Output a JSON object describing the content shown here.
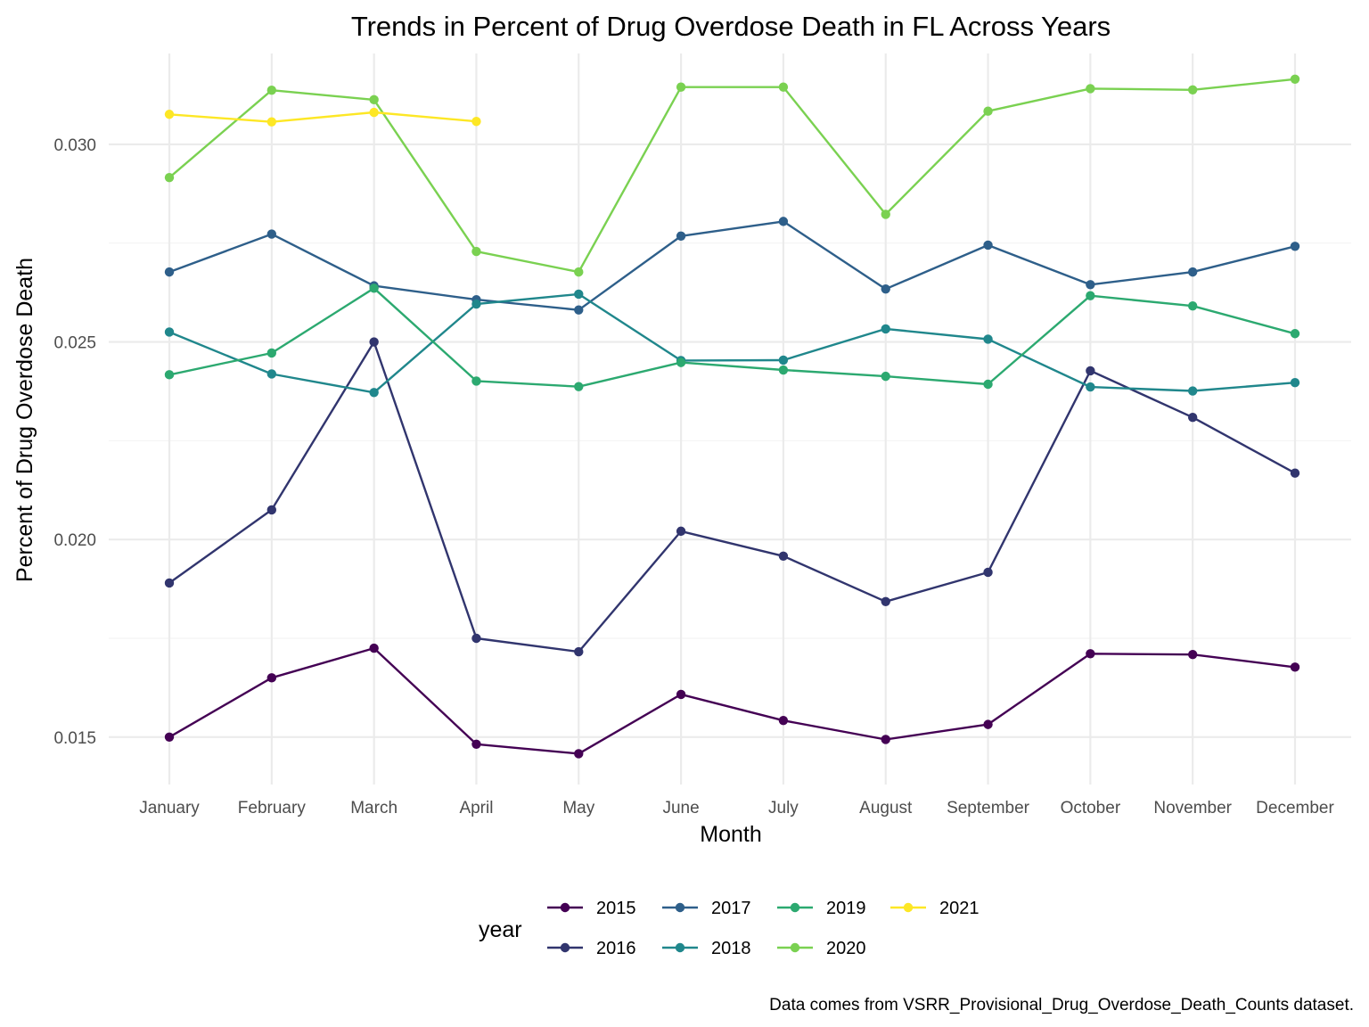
{
  "chart_data": {
    "type": "line",
    "title": "Trends in Percent of Drug Overdose Death in FL Across Years",
    "xlabel": "Month",
    "ylabel": "Percent of Drug Overdose Death",
    "caption": "Data comes from VSRR_Provisional_Drug_Overdose_Death_Counts dataset.",
    "legend_title": "year",
    "legend_position": "bottom",
    "grid": true,
    "ylim": [
      0.0138,
      0.0323
    ],
    "yticks": [
      0.015,
      0.02,
      0.025,
      0.03
    ],
    "ytick_labels": [
      "0.015",
      "0.020",
      "0.025",
      "0.030"
    ],
    "categories": [
      "January",
      "February",
      "March",
      "April",
      "May",
      "June",
      "July",
      "August",
      "September",
      "October",
      "November",
      "December"
    ],
    "series": [
      {
        "name": "2015",
        "color": "#440154",
        "values": [
          0.015,
          0.0165,
          0.01725,
          0.01482,
          0.01458,
          0.01608,
          0.01542,
          0.01494,
          0.01532,
          0.01711,
          0.01709,
          0.01677
        ]
      },
      {
        "name": "2016",
        "color": "#31356E",
        "values": [
          0.0189,
          0.02075,
          0.025,
          0.0175,
          0.01716,
          0.02021,
          0.01958,
          0.01843,
          0.01917,
          0.02427,
          0.02309,
          0.02168
        ]
      },
      {
        "name": "2017",
        "color": "#2E5F8A",
        "values": [
          0.02677,
          0.02773,
          0.02642,
          0.02607,
          0.02581,
          0.02768,
          0.02805,
          0.02634,
          0.02745,
          0.02645,
          0.02677,
          0.02742
        ]
      },
      {
        "name": "2018",
        "color": "#20878C",
        "values": [
          0.02525,
          0.02419,
          0.02372,
          0.02596,
          0.02621,
          0.02453,
          0.02454,
          0.02533,
          0.02507,
          0.02386,
          0.02376,
          0.02397
        ]
      },
      {
        "name": "2019",
        "color": "#2CA970",
        "values": [
          0.02417,
          0.02472,
          0.02636,
          0.02401,
          0.02387,
          0.02448,
          0.02429,
          0.02413,
          0.02393,
          0.02617,
          0.02591,
          0.02521
        ]
      },
      {
        "name": "2020",
        "color": "#7AD151",
        "values": [
          0.02916,
          0.03137,
          0.03113,
          0.02729,
          0.02677,
          0.03145,
          0.03145,
          0.02823,
          0.03084,
          0.03141,
          0.03138,
          0.03165
        ]
      },
      {
        "name": "2021",
        "color": "#FDE725",
        "values": [
          0.03076,
          0.03057,
          0.03081,
          0.03058,
          null,
          null,
          null,
          null,
          null,
          null,
          null,
          null
        ]
      }
    ]
  }
}
